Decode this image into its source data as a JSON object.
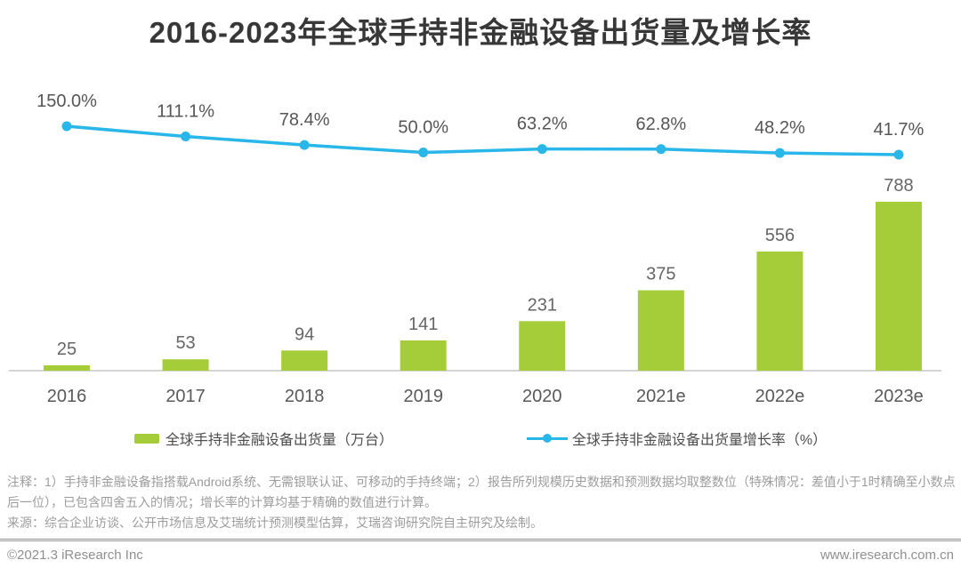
{
  "title": "2016-2023年全球手持非金融设备出货量及增长率",
  "chart_data": {
    "type": "bar",
    "title": "2016-2023年全球手持非金融设备出货量及增长率",
    "categories": [
      "2016",
      "2017",
      "2018",
      "2019",
      "2020",
      "2021e",
      "2022e",
      "2023e"
    ],
    "series": [
      {
        "name": "全球手持非金融设备出货量（万台）",
        "type": "bar",
        "values": [
          25,
          53,
          94,
          141,
          231,
          375,
          556,
          788
        ],
        "color": "#a5cd39"
      },
      {
        "name": "全球手持非金融设备出货量增长率（%）",
        "type": "line",
        "values": [
          150.0,
          111.1,
          78.4,
          50.0,
          63.2,
          62.8,
          48.2,
          41.7
        ],
        "labels": [
          "150.0%",
          "111.1%",
          "78.4%",
          "50.0%",
          "63.2%",
          "62.8%",
          "48.2%",
          "41.7%"
        ],
        "color": "#29b6e8"
      }
    ],
    "xlabel": "",
    "ylabel": "",
    "grid": false,
    "legend_position": "bottom",
    "bar_ylim": [
      0,
      788
    ],
    "line_ylim": [
      41.7,
      150
    ]
  },
  "colors": {
    "bar": "#a5cd39",
    "line": "#29b6e8",
    "axis": "#a8a8a8",
    "bar_label": "#666666",
    "line_label": "#555555",
    "x_label": "#595959"
  },
  "legend": {
    "items": [
      {
        "label": "全球手持非金融设备出货量（万台）",
        "marker": "bar-swatch"
      },
      {
        "label": "全球手持非金融设备出货量增长率（%）",
        "marker": "line-dot"
      }
    ]
  },
  "notes": {
    "note": "注释：1）手持非金融设备指搭载Android系统、无需银联认证、可移动的手持终端；2）报告所列规模历史数据和预测数据均取整数位（特殊情况：差值小于1时精确至小数点后一位），已包含四舍五入的情况；增长率的计算均基于精确的数值进行计算。",
    "source": "来源：综合企业访谈、公开市场信息及艾瑞统计预测模型估算，艾瑞咨询研究院自主研究及绘制。"
  },
  "footer": {
    "left": "©2021.3 iResearch Inc",
    "right": "www.iresearch.com.cn"
  }
}
